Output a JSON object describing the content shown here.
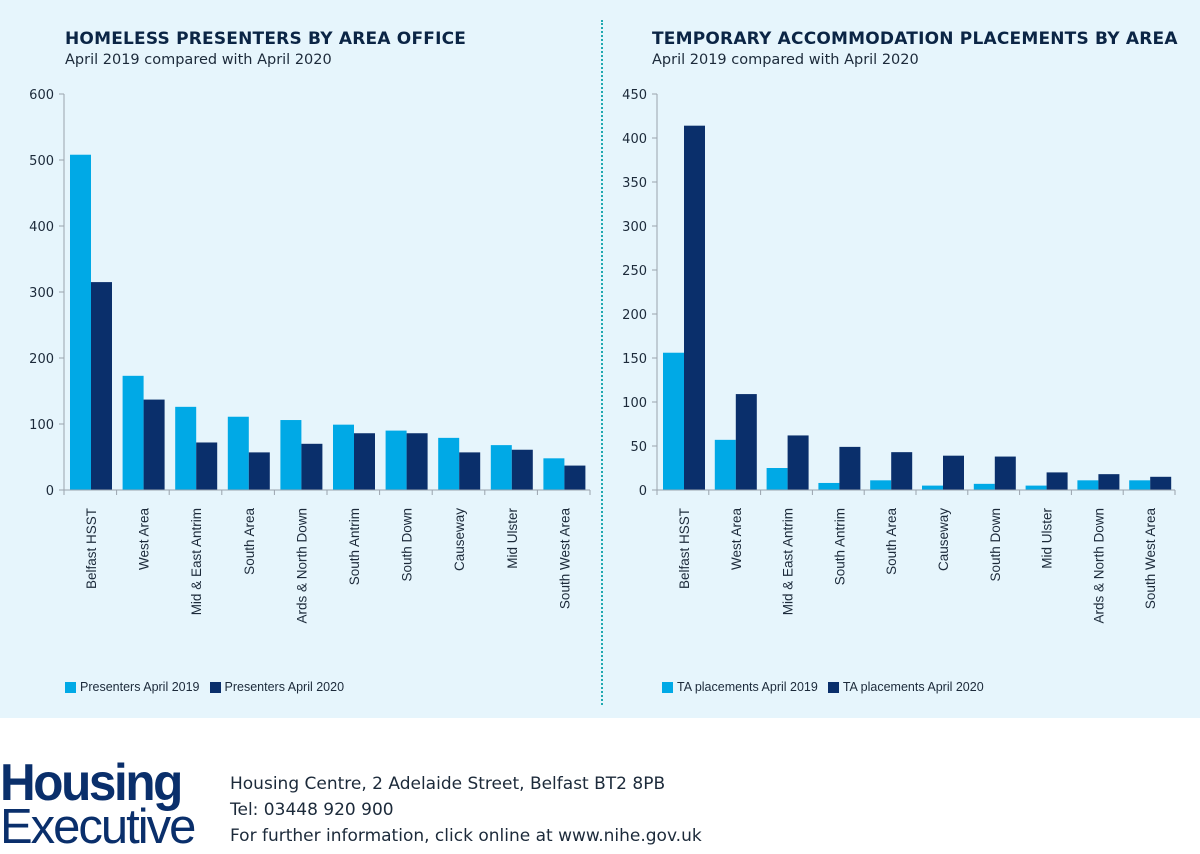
{
  "chart_data": [
    {
      "type": "bar",
      "title": "HOMELESS PRESENTERS BY AREA OFFICE",
      "subtitle": "April 2019 compared with April 2020",
      "categories": [
        "Belfast HSST",
        "West Area",
        "Mid & East Antrim",
        "South Area",
        "Ards & North Down",
        "South Antrim",
        "South Down",
        "Causeway",
        "Mid Ulster",
        "South West Area"
      ],
      "series": [
        {
          "name": "Presenters April 2019",
          "color": "#00a9e6",
          "values": [
            508,
            173,
            126,
            111,
            106,
            99,
            90,
            79,
            68,
            48
          ]
        },
        {
          "name": "Presenters April 2020",
          "color": "#0a2f6b",
          "values": [
            315,
            137,
            72,
            57,
            70,
            86,
            86,
            57,
            61,
            37
          ]
        }
      ],
      "ylim": [
        0,
        600
      ],
      "yticks": [
        0,
        100,
        200,
        300,
        400,
        500,
        600
      ],
      "legend": "bottom-left"
    },
    {
      "type": "bar",
      "title": "TEMPORARY ACCOMMODATION PLACEMENTS BY AREA",
      "subtitle": "April 2019 compared with April 2020",
      "categories": [
        "Belfast HSST",
        "West Area",
        "Mid & East Antrim",
        "South Antrim",
        "South Area",
        "Causeway",
        "South Down",
        "Mid Ulster",
        "Ards & North Down",
        "South West Area"
      ],
      "series": [
        {
          "name": "TA placements April 2019",
          "color": "#00a9e6",
          "values": [
            156,
            57,
            25,
            8,
            11,
            5,
            7,
            5,
            11,
            11
          ]
        },
        {
          "name": "TA placements April 2020",
          "color": "#0a2f6b",
          "values": [
            414,
            109,
            62,
            49,
            43,
            39,
            38,
            20,
            18,
            15
          ]
        }
      ],
      "ylim": [
        0,
        450
      ],
      "yticks": [
        0,
        50,
        100,
        150,
        200,
        250,
        300,
        350,
        400,
        450
      ],
      "legend": "bottom-left"
    }
  ],
  "footer": {
    "logo_top": "Housing",
    "logo_bottom": "Executive",
    "address": "Housing Centre, 2 Adelaide Street, Belfast BT2 8PB",
    "tel": "Tel: 03448 920 900",
    "info": "For further information, click online at www.nihe.gov.uk"
  }
}
